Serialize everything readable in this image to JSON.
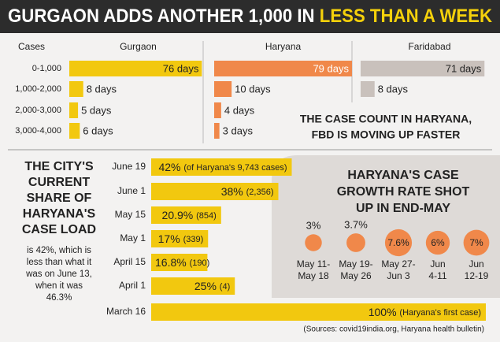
{
  "title": {
    "main": "GURGAON ADDS ANOTHER 1,000 IN",
    "highlight": "LESS THAN A WEEK"
  },
  "chart_data": [
    {
      "type": "bar",
      "orientation": "horizontal",
      "category_label": "Cases",
      "categories": [
        "0-1,000",
        "1,000-2,000",
        "2,000-3,000",
        "3,000-4,000"
      ],
      "series": [
        {
          "name": "Gurgaon",
          "color": "#f2c80f",
          "values": [
            76,
            8,
            5,
            6
          ],
          "value_labels": [
            "76 days",
            "8 days",
            "5 days",
            "6 days"
          ]
        },
        {
          "name": "Haryana",
          "color": "#f0884a",
          "values": [
            79,
            10,
            4,
            3
          ],
          "value_labels": [
            "79 days",
            "10 days",
            "4 days",
            "3 days"
          ]
        },
        {
          "name": "Faridabad",
          "color": "#c9c1bc",
          "values": [
            71,
            8,
            null,
            null
          ],
          "value_labels": [
            "71 days",
            "8 days",
            null,
            null
          ]
        }
      ],
      "annotation": [
        "THE CASE COUNT IN HARYANA,",
        "FBD IS MOVING UP FASTER"
      ]
    },
    {
      "type": "bar",
      "orientation": "horizontal",
      "title": [
        "THE CITY'S",
        "CURRENT",
        "SHARE OF",
        "HARYANA'S",
        "CASE LOAD"
      ],
      "subtitle": [
        "is 42%, which is",
        "less than what it",
        "was on June 13,",
        "when it was",
        "46.3%"
      ],
      "categories": [
        "June 19",
        "June 1",
        "May 15",
        "May 1",
        "April 15",
        "April 1",
        "March 16"
      ],
      "values": [
        42,
        38,
        20.9,
        17,
        16.8,
        25,
        100
      ],
      "value_labels": [
        "42%",
        "38%",
        "20.9%",
        "17%",
        "16.8%",
        "25%",
        "100%"
      ],
      "notes": [
        "(of Haryana's 9,743 cases)",
        "(2,356)",
        "(854)",
        "(339)",
        "(190)",
        "(4)",
        "(Haryana's first case)"
      ],
      "color": "#f2c80f"
    },
    {
      "type": "bubble",
      "title": [
        "HARYANA'S CASE",
        "GROWTH RATE SHOT",
        "UP IN END-MAY"
      ],
      "categories": [
        [
          "May 11-",
          "May 18"
        ],
        [
          "May 19-",
          "May 26"
        ],
        [
          "May 27-",
          "Jun 3"
        ],
        [
          "Jun",
          "4-11"
        ],
        [
          "Jun",
          "12-19"
        ]
      ],
      "values": [
        3,
        3.7,
        7.6,
        6,
        7
      ],
      "value_labels": [
        "3%",
        "3.7%",
        "7.6%",
        "6%",
        "7%"
      ],
      "color": "#f0884a"
    }
  ],
  "source": "(Sources: covid19india.org, Haryana health bulletin)"
}
